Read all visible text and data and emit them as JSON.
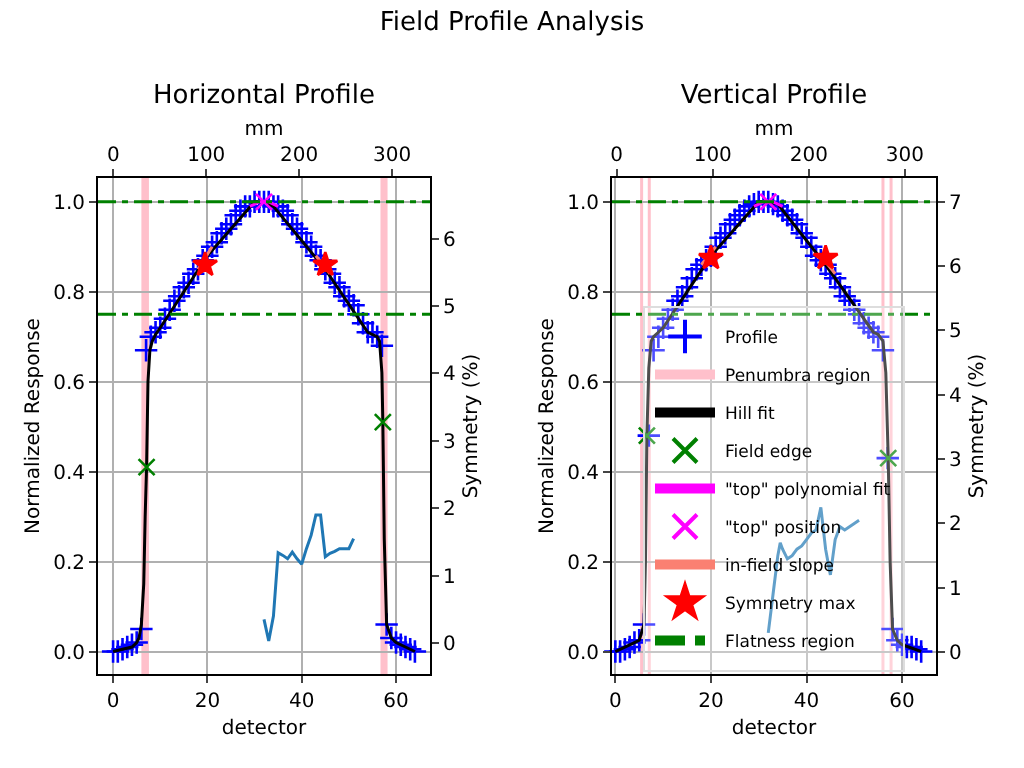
{
  "chart_data": [
    {
      "type": "scatter",
      "title": "Horizontal Profile",
      "xlabel": "detector",
      "x2label": "mm",
      "ylabel": "Normalized Response",
      "y2label": "Symmetry (%)",
      "annotations": [
        "Field Profile Analysis"
      ],
      "xlim": [
        -3.2,
        67.2
      ],
      "xticks": [
        0,
        20,
        40,
        60
      ],
      "x2lim": [
        -16.5,
        340.8
      ],
      "x2ticks": [
        0,
        100,
        200,
        300
      ],
      "ylim": [
        -0.05,
        1.053
      ],
      "yticks": [
        {
          "value": 0,
          "label": "0.0"
        },
        {
          "value": 0.2,
          "label": "0.2"
        },
        {
          "value": 0.4,
          "label": "0.4"
        },
        {
          "value": 0.6,
          "label": "0.6"
        },
        {
          "value": 0.8,
          "label": "0.8"
        },
        {
          "value": 1,
          "label": "1.0"
        }
      ],
      "y2lim": [
        -0.46,
        6.9
      ],
      "y2ticks": [
        0,
        1,
        2,
        3,
        4,
        5,
        6
      ],
      "grid": true,
      "legend": false,
      "series": [
        {
          "marker": "cross",
          "color": "#0000ff",
          "x": [
            0,
            1,
            2,
            3,
            4,
            5,
            6,
            7,
            8,
            9,
            10,
            11,
            12,
            13,
            14,
            15,
            16,
            17,
            18,
            19,
            20,
            21,
            22,
            23,
            24,
            25,
            26,
            27,
            28,
            29,
            30,
            31,
            32,
            33,
            34,
            35,
            36,
            37,
            38,
            39,
            40,
            41,
            42,
            43,
            44,
            45,
            46,
            47,
            48,
            49,
            50,
            51,
            52,
            53,
            54,
            55,
            56,
            57,
            58,
            59,
            60,
            61,
            62,
            63,
            64
          ],
          "values": [
            0,
            0,
            0.005,
            0.01,
            0.015,
            0.02,
            0.05,
            0.67,
            0.7,
            0.71,
            0.72,
            0.74,
            0.76,
            0.78,
            0.79,
            0.81,
            0.82,
            0.84,
            0.85,
            0.87,
            0.88,
            0.9,
            0.91,
            0.93,
            0.94,
            0.95,
            0.97,
            0.98,
            0.99,
            0.99,
            1,
            1,
            1,
            1,
            0.99,
            0.99,
            0.98,
            0.97,
            0.95,
            0.94,
            0.93,
            0.91,
            0.9,
            0.88,
            0.87,
            0.85,
            0.84,
            0.82,
            0.81,
            0.79,
            0.78,
            0.77,
            0.75,
            0.73,
            0.71,
            0.71,
            0.7,
            0.68,
            0.06,
            0.03,
            0.02,
            0.015,
            0.01,
            0.005,
            0
          ]
        },
        {
          "type": "line",
          "color": "#000000",
          "x": [
            0,
            4,
            5,
            5.5,
            6,
            6.5,
            6.8,
            7.1,
            7.4,
            7.8,
            8.3,
            9,
            10,
            20,
            30,
            32,
            34,
            45,
            54,
            55,
            56,
            56.5,
            57,
            57.2,
            57.5,
            58,
            59,
            60,
            64
          ],
          "values": [
            0,
            0.01,
            0.02,
            0.03,
            0.06,
            0.15,
            0.3,
            0.41,
            0.6,
            0.67,
            0.69,
            0.705,
            0.72,
            0.88,
            1,
            1,
            0.99,
            0.85,
            0.71,
            0.705,
            0.7,
            0.69,
            0.62,
            0.51,
            0.25,
            0.06,
            0.03,
            0.02,
            0
          ]
        },
        {
          "marker": "x",
          "color": "#008000",
          "x": [
            7.1,
            57.2
          ],
          "values": [
            0.41,
            0.51
          ]
        },
        {
          "type": "line",
          "color": "#ff00ff",
          "x": [
            29,
            30,
            31,
            32,
            33,
            34,
            35
          ],
          "values": [
            0.99,
            0.995,
            1,
            1,
            1,
            0.995,
            0.99
          ]
        },
        {
          "marker": "x",
          "color": "#ff00ff",
          "x": [
            32
          ],
          "values": [
            1
          ]
        },
        {
          "type": "line",
          "color": "#fa8072",
          "x": [
            18,
            21,
            null,
            43,
            46
          ],
          "values": [
            0.85,
            0.9,
            null,
            0.88,
            0.84
          ]
        },
        {
          "marker": "star",
          "color": "#ff0000",
          "x": [
            19.5,
            45
          ],
          "values": [
            0.86,
            0.86
          ]
        },
        {
          "type": "line",
          "axis": "y2",
          "color": "#1f77b4",
          "x": [
            32,
            33,
            34,
            35,
            36,
            37,
            38,
            39,
            40,
            41,
            42,
            43,
            44,
            45,
            46,
            47,
            48,
            49,
            50,
            51
          ],
          "values": [
            0.35,
            0.03,
            0.4,
            1.34,
            1.3,
            1.25,
            1.35,
            1.25,
            1.17,
            1.4,
            1.6,
            1.9,
            1.9,
            1.28,
            1.33,
            1.36,
            1.4,
            1.4,
            1.4,
            1.55
          ]
        }
      ],
      "bands": [
        {
          "axis": "x",
          "from": 6.0,
          "to": 7.6,
          "color": "#ffc0cb"
        },
        {
          "axis": "x",
          "from": 56.7,
          "to": 58.2,
          "color": "#ffc0cb"
        }
      ],
      "ref_lines": [
        {
          "axis": "y",
          "value": 1.0,
          "color": "#008000",
          "line_style": "dashdot"
        },
        {
          "axis": "y",
          "value": 0.75,
          "color": "#008000",
          "line_style": "dashdot"
        }
      ]
    },
    {
      "type": "scatter",
      "title": "Vertical Profile",
      "xlabel": "detector",
      "x2label": "mm",
      "ylabel": "Normalized Response",
      "y2label": "Symmetry (%)",
      "xlim": [
        -0.7,
        67.1
      ],
      "xticks": [
        0,
        20,
        40,
        60
      ],
      "x2lim": [
        -4.9,
        332.4
      ],
      "x2ticks": [
        0,
        100,
        200,
        300
      ],
      "ylim": [
        -0.05,
        1.053
      ],
      "yticks": [
        {
          "value": 0,
          "label": "0.0"
        },
        {
          "value": 0.2,
          "label": "0.2"
        },
        {
          "value": 0.4,
          "label": "0.4"
        },
        {
          "value": 0.6,
          "label": "0.6"
        },
        {
          "value": 0.8,
          "label": "0.8"
        },
        {
          "value": 1,
          "label": "1.0"
        }
      ],
      "y2lim": [
        -0.34,
        7.37
      ],
      "y2ticks": [
        0,
        1,
        2,
        3,
        4,
        5,
        6,
        7
      ],
      "grid": true,
      "legend": "bottom",
      "series": [
        {
          "name": "Profile",
          "marker": "cross",
          "color": "#0000ff",
          "x": [
            0,
            1,
            2,
            3,
            4,
            5,
            6,
            7,
            8,
            9,
            10,
            11,
            12,
            13,
            14,
            15,
            16,
            17,
            18,
            19,
            20,
            21,
            22,
            23,
            24,
            25,
            26,
            27,
            28,
            29,
            30,
            31,
            32,
            33,
            34,
            35,
            36,
            37,
            38,
            39,
            40,
            41,
            42,
            43,
            44,
            45,
            46,
            47,
            48,
            49,
            50,
            51,
            52,
            53,
            54,
            55,
            56,
            57,
            58,
            59,
            60,
            61,
            62,
            63,
            64
          ],
          "values": [
            0,
            0,
            0.005,
            0.01,
            0.02,
            0.025,
            0.06,
            0.48,
            0.67,
            0.7,
            0.72,
            0.74,
            0.76,
            0.78,
            0.79,
            0.81,
            0.83,
            0.85,
            0.86,
            0.87,
            0.88,
            0.9,
            0.92,
            0.93,
            0.95,
            0.96,
            0.97,
            0.98,
            0.99,
            0.995,
            1,
            1,
            1,
            0.995,
            0.99,
            0.98,
            0.97,
            0.96,
            0.95,
            0.93,
            0.92,
            0.9,
            0.88,
            0.87,
            0.86,
            0.84,
            0.83,
            0.81,
            0.79,
            0.78,
            0.76,
            0.75,
            0.73,
            0.72,
            0.71,
            0.7,
            0.67,
            0.43,
            0.05,
            0.025,
            0.015,
            0.01,
            0.01,
            0.005,
            0
          ]
        },
        {
          "type": "line",
          "name": "Hill fit",
          "color": "#000000",
          "x": [
            0,
            4,
            5,
            6,
            6.3,
            6.6,
            7,
            7.5,
            8,
            9,
            10,
            20,
            30,
            32,
            34,
            44,
            54,
            55,
            56,
            56.6,
            57.1,
            57.5,
            58,
            59,
            60,
            64
          ],
          "values": [
            0,
            0.02,
            0.025,
            0.06,
            0.2,
            0.48,
            0.63,
            0.69,
            0.7,
            0.71,
            0.72,
            0.88,
            1,
            1,
            0.995,
            0.86,
            0.71,
            0.705,
            0.69,
            0.62,
            0.43,
            0.2,
            0.05,
            0.025,
            0.015,
            0
          ]
        },
        {
          "name": "Field edge",
          "marker": "x",
          "color": "#008000",
          "x": [
            6.6,
            57.1
          ],
          "values": [
            0.48,
            0.43
          ]
        },
        {
          "type": "line",
          "name": "\"top\" polynomial fit",
          "color": "#ff00ff",
          "x": [
            29,
            30,
            31,
            32,
            33,
            34,
            35
          ],
          "values": [
            0.99,
            0.995,
            1,
            1,
            1,
            0.995,
            0.99
          ]
        },
        {
          "name": "\"top\" position",
          "marker": "x",
          "color": "#ff00ff",
          "x": [
            32
          ],
          "values": [
            1
          ]
        },
        {
          "type": "line",
          "name": "in-field slope",
          "color": "#fa8072",
          "x": [
            18,
            21,
            null,
            43,
            46
          ],
          "values": [
            0.86,
            0.9,
            null,
            0.88,
            0.84
          ]
        },
        {
          "name": "Symmetry max",
          "marker": "star",
          "color": "#ff0000",
          "x": [
            20,
            44
          ],
          "values": [
            0.875,
            0.875
          ]
        },
        {
          "type": "line",
          "axis": "y2",
          "color": "#1f77b4",
          "x": [
            32,
            33,
            34,
            34.5,
            35,
            36,
            37,
            38,
            39,
            40,
            41,
            42,
            43,
            44,
            45,
            46,
            47,
            48,
            49,
            50,
            51
          ],
          "values": [
            0.3,
            0.9,
            1.5,
            1.7,
            1.6,
            1.45,
            1.5,
            1.6,
            1.65,
            1.75,
            1.85,
            1.9,
            2.25,
            1.6,
            1.2,
            1.75,
            1.95,
            1.9,
            1.95,
            2,
            2.05
          ]
        }
      ],
      "ref_lines": [
        {
          "axis": "x",
          "value": 5.5,
          "color": "#ffc0cb",
          "label": "Penumbra region"
        },
        {
          "axis": "x",
          "value": 7.1,
          "color": "#ffc0cb"
        },
        {
          "axis": "x",
          "value": 56.0,
          "color": "#ffc0cb"
        },
        {
          "axis": "x",
          "value": 57.7,
          "color": "#ffc0cb"
        },
        {
          "axis": "y",
          "value": 1.0,
          "color": "#008000",
          "line_style": "dashdot",
          "label": "Flatness region"
        },
        {
          "axis": "y",
          "value": 0.75,
          "color": "#008000",
          "line_style": "dashdot"
        }
      ]
    }
  ]
}
